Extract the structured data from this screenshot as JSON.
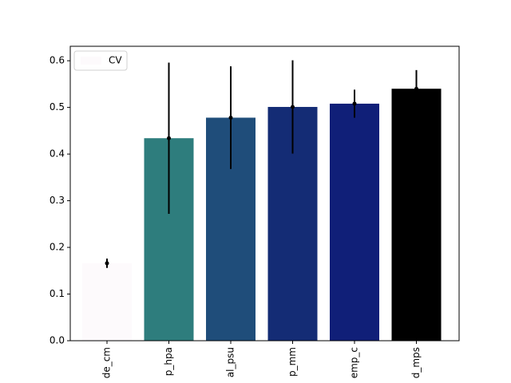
{
  "chart_data": {
    "type": "bar",
    "categories": [
      "de_cm",
      "p_hpa",
      "al_psu",
      "p_mm",
      "emp_c",
      "d_mps"
    ],
    "series": [
      {
        "name": "CV",
        "colors": [
          "#fdfafc",
          "#2e7d7d",
          "#1f4d7a",
          "#142c75",
          "#101f78",
          "#000000"
        ],
        "values": [
          0.166,
          0.434,
          0.478,
          0.501,
          0.508,
          0.54
        ],
        "errors": [
          0.01,
          0.162,
          0.11,
          0.1,
          0.03,
          0.04
        ]
      }
    ],
    "ylim": [
      0,
      0.631
    ],
    "yticks": [
      {
        "value": 0,
        "label": "0.0"
      },
      0.1,
      0.2,
      0.3,
      0.4,
      0.5,
      0.6
    ],
    "legend": "upper left",
    "grid": false
  }
}
